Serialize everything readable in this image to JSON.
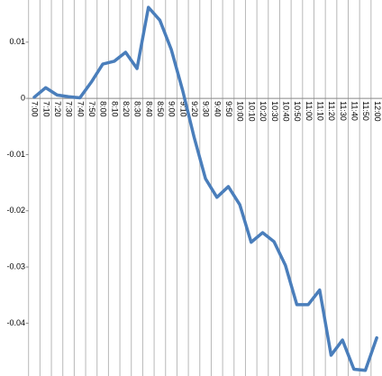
{
  "chart_data": {
    "type": "line",
    "categories": [
      "7:00",
      "7:10",
      "7:20",
      "7:30",
      "7:40",
      "7:50",
      "8:00",
      "8:10",
      "8:20",
      "8:30",
      "8:40",
      "8:50",
      "9:00",
      "9:10",
      "9:20",
      "9:30",
      "9:40",
      "9:50",
      "10:00",
      "10:10",
      "10:20",
      "10:30",
      "10:40",
      "10:50",
      "11:00",
      "11:10",
      "11:20",
      "11:30",
      "11:40",
      "11:50",
      "12:00"
    ],
    "series": [
      {
        "color": "#4a7ebb",
        "values": [
          0.0002,
          0.0019,
          0.0006,
          0.0003,
          0.0001,
          0.0029,
          0.0061,
          0.0066,
          0.0082,
          0.0053,
          0.0162,
          0.0139,
          0.0087,
          0.0014,
          -0.0069,
          -0.0143,
          -0.0176,
          -0.0157,
          -0.0189,
          -0.0256,
          -0.0239,
          -0.0255,
          -0.0297,
          -0.0367,
          -0.0367,
          -0.0341,
          -0.0457,
          -0.043,
          -0.0482,
          -0.0484,
          -0.0426
        ]
      }
    ],
    "ylim": [
      -0.0494,
      0.0175
    ],
    "yticks": [
      0.01,
      0,
      -0.01,
      -0.02,
      -0.03,
      -0.04
    ],
    "grid": "vertical"
  }
}
